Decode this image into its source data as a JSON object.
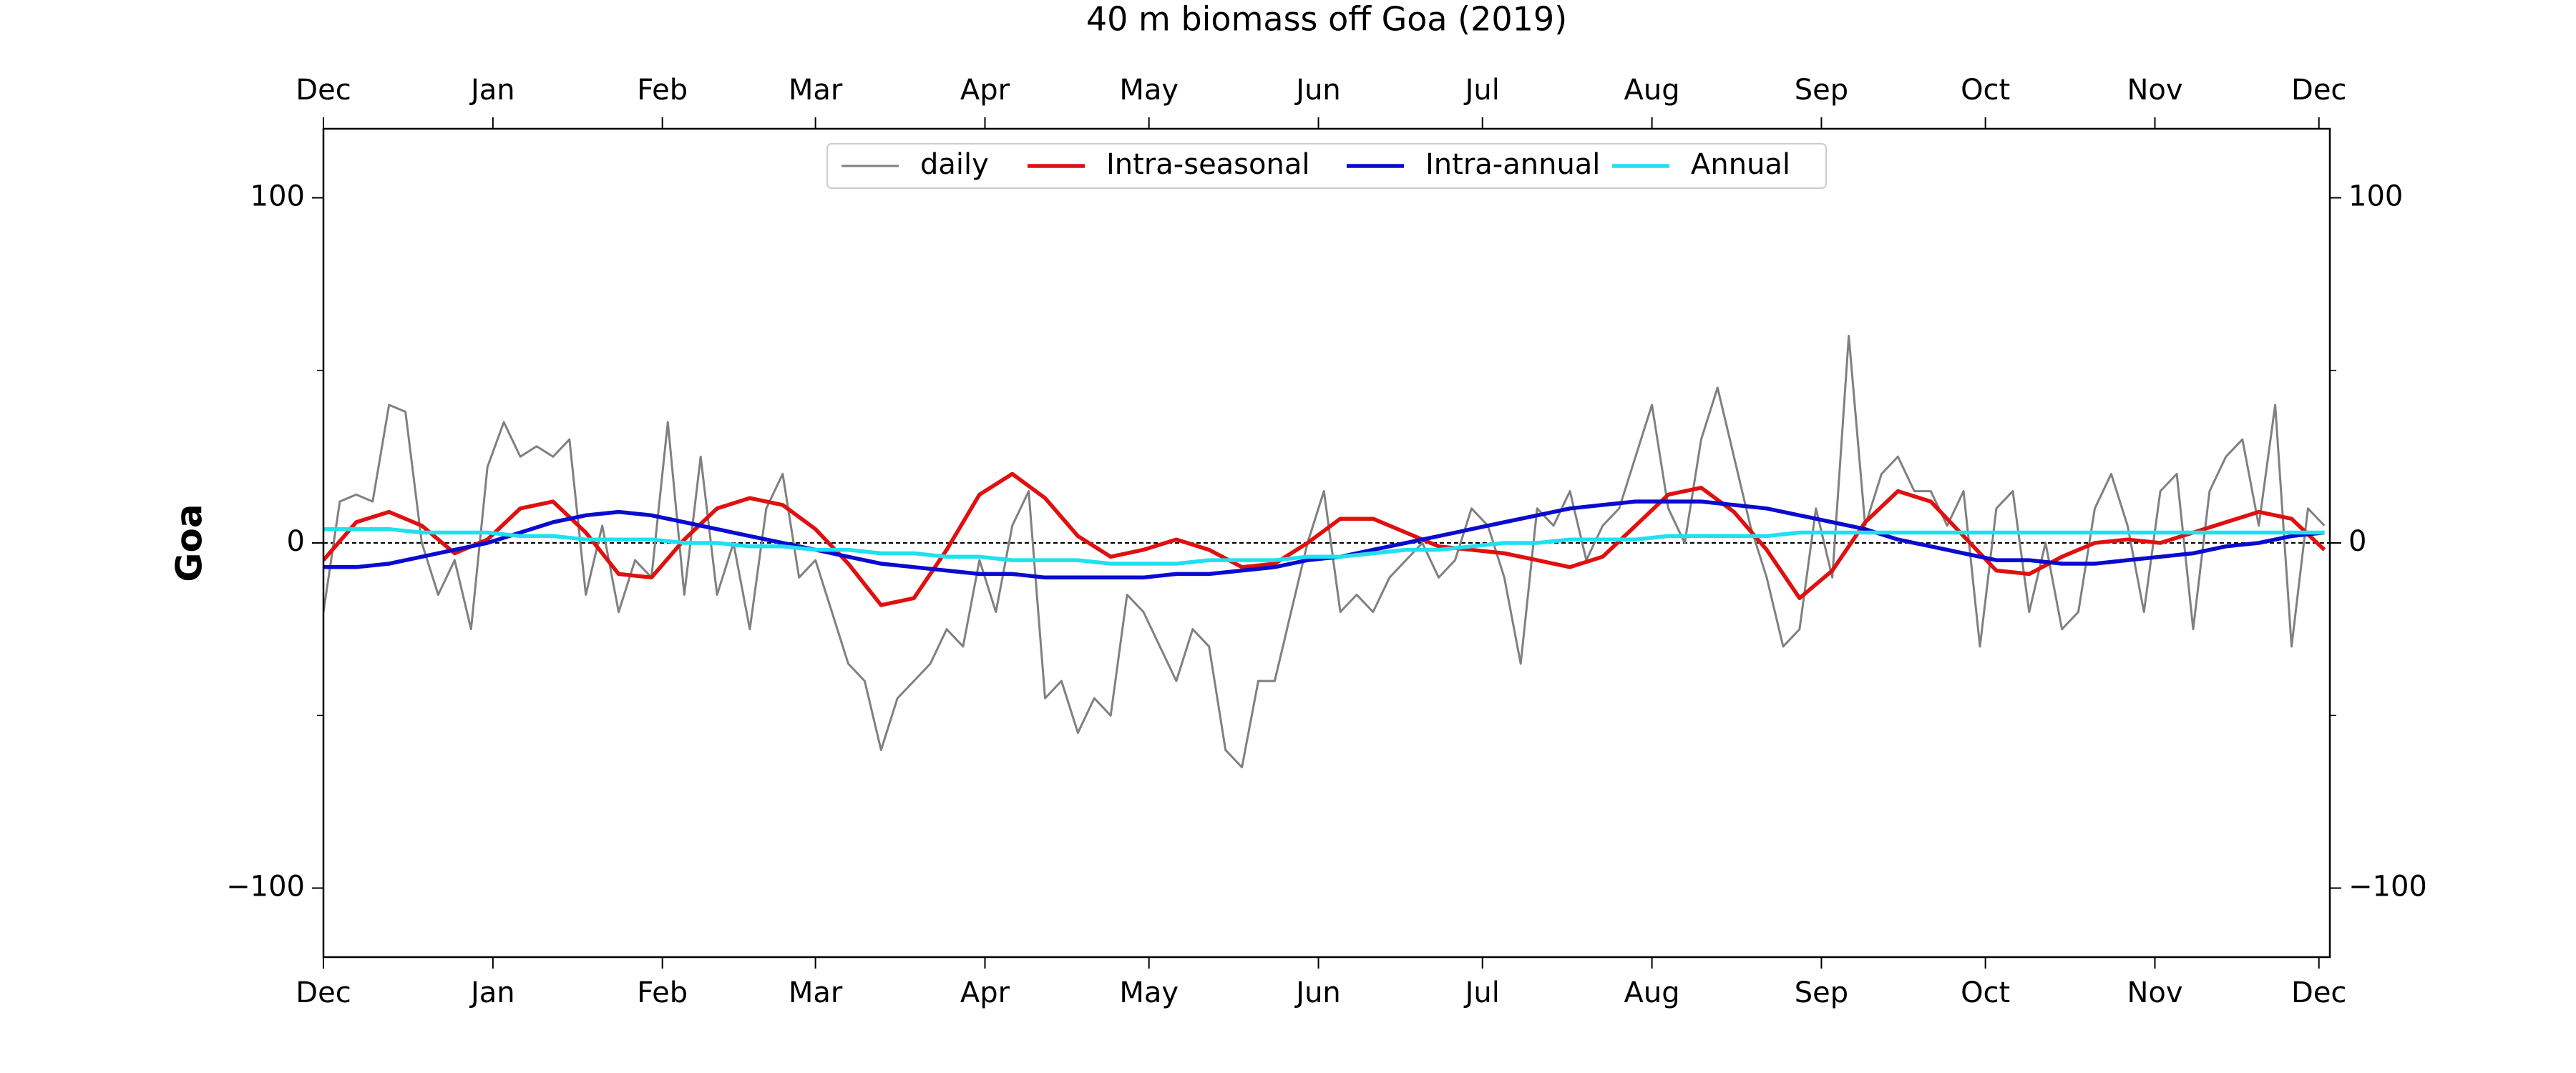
{
  "chart_data": {
    "type": "line",
    "title": "40 m biomass off Goa (2019)",
    "y_label": "Goa",
    "xlim": [
      0,
      367
    ],
    "ylim": [
      -120,
      120
    ],
    "xticks": [
      {
        "value": 0,
        "label": "Dec"
      },
      {
        "value": 31,
        "label": "Jan"
      },
      {
        "value": 62,
        "label": "Feb"
      },
      {
        "value": 90,
        "label": "Mar"
      },
      {
        "value": 121,
        "label": "Apr"
      },
      {
        "value": 151,
        "label": "May"
      },
      {
        "value": 182,
        "label": "Jun"
      },
      {
        "value": 212,
        "label": "Jul"
      },
      {
        "value": 243,
        "label": "Aug"
      },
      {
        "value": 274,
        "label": "Sep"
      },
      {
        "value": 304,
        "label": "Oct"
      },
      {
        "value": 335,
        "label": "Nov"
      },
      {
        "value": 365,
        "label": "Dec"
      }
    ],
    "yticks": [
      {
        "value": -100,
        "label": "−100"
      },
      0,
      100
    ],
    "yminorticks": [
      -50,
      50
    ],
    "hline": 0,
    "legend": "upper center",
    "series": [
      {
        "name": "daily",
        "color": "#808080",
        "x": [
          0,
          3,
          6,
          9,
          12,
          15,
          18,
          21,
          24,
          27,
          30,
          33,
          36,
          39,
          42,
          45,
          48,
          51,
          54,
          57,
          60,
          63,
          66,
          69,
          72,
          75,
          78,
          81,
          84,
          87,
          90,
          93,
          96,
          99,
          102,
          105,
          108,
          111,
          114,
          117,
          120,
          123,
          126,
          129,
          132,
          135,
          138,
          141,
          144,
          147,
          150,
          153,
          156,
          159,
          162,
          165,
          168,
          171,
          174,
          177,
          180,
          183,
          186,
          189,
          192,
          195,
          198,
          201,
          204,
          207,
          210,
          213,
          216,
          219,
          222,
          225,
          228,
          231,
          234,
          237,
          240,
          243,
          246,
          249,
          252,
          255,
          258,
          261,
          264,
          267,
          270,
          273,
          276,
          279,
          282,
          285,
          288,
          291,
          294,
          297,
          300,
          303,
          306,
          309,
          312,
          315,
          318,
          321,
          324,
          327,
          330,
          333,
          336,
          339,
          342,
          345,
          348,
          351,
          354,
          357,
          360,
          363,
          366
        ],
        "values": [
          -20,
          12,
          14,
          12,
          40,
          38,
          0,
          -15,
          -5,
          -25,
          22,
          35,
          25,
          28,
          25,
          30,
          -15,
          5,
          -20,
          -5,
          -10,
          35,
          -15,
          25,
          -15,
          0,
          -25,
          10,
          20,
          -10,
          -5,
          -20,
          -35,
          -40,
          -60,
          -45,
          -40,
          -35,
          -25,
          -30,
          -5,
          -20,
          5,
          15,
          -45,
          -40,
          -55,
          -45,
          -50,
          -15,
          -20,
          -30,
          -40,
          -25,
          -30,
          -60,
          -65,
          -40,
          -40,
          -20,
          0,
          15,
          -20,
          -15,
          -20,
          -10,
          -5,
          0,
          -10,
          -5,
          10,
          5,
          -10,
          -35,
          10,
          5,
          15,
          -5,
          5,
          10,
          25,
          40,
          10,
          0,
          30,
          45,
          25,
          5,
          -10,
          -30,
          -25,
          10,
          -10,
          60,
          5,
          20,
          25,
          15,
          15,
          5,
          15,
          -30,
          10,
          15,
          -20,
          0,
          -25,
          -20,
          10,
          20,
          5,
          -20,
          15,
          20,
          -25,
          15,
          25,
          30,
          5,
          40,
          -30,
          10,
          5
        ]
      },
      {
        "name": "Intra-seasonal",
        "color": "#e01010",
        "x": [
          0,
          6,
          12,
          18,
          24,
          30,
          36,
          42,
          48,
          54,
          60,
          66,
          72,
          78,
          84,
          90,
          96,
          102,
          108,
          114,
          120,
          126,
          132,
          138,
          144,
          150,
          156,
          162,
          168,
          174,
          180,
          186,
          192,
          198,
          204,
          210,
          216,
          222,
          228,
          234,
          240,
          246,
          252,
          258,
          264,
          270,
          276,
          282,
          288,
          294,
          300,
          306,
          312,
          318,
          324,
          330,
          336,
          342,
          348,
          354,
          360,
          366
        ],
        "values": [
          -5,
          6,
          9,
          5,
          -3,
          1,
          10,
          12,
          3,
          -9,
          -10,
          1,
          10,
          13,
          11,
          4,
          -6,
          -18,
          -16,
          -2,
          14,
          20,
          13,
          2,
          -4,
          -2,
          1,
          -2,
          -7,
          -6,
          0,
          7,
          7,
          3,
          -1,
          -2,
          -3,
          -5,
          -7,
          -4,
          5,
          14,
          16,
          9,
          -2,
          -16,
          -8,
          6,
          15,
          12,
          2,
          -8,
          -9,
          -4,
          0,
          1,
          0,
          3,
          6,
          9,
          7,
          -2
        ]
      },
      {
        "name": "Intra-annual",
        "color": "#0a0ad0",
        "x": [
          0,
          6,
          12,
          18,
          24,
          30,
          36,
          42,
          48,
          54,
          60,
          66,
          72,
          78,
          84,
          90,
          96,
          102,
          108,
          114,
          120,
          126,
          132,
          138,
          144,
          150,
          156,
          162,
          168,
          174,
          180,
          186,
          192,
          198,
          204,
          210,
          216,
          222,
          228,
          234,
          240,
          246,
          252,
          258,
          264,
          270,
          276,
          282,
          288,
          294,
          300,
          306,
          312,
          318,
          324,
          330,
          336,
          342,
          348,
          354,
          360,
          366
        ],
        "values": [
          -7,
          -7,
          -6,
          -4,
          -2,
          0,
          3,
          6,
          8,
          9,
          8,
          6,
          4,
          2,
          0,
          -2,
          -4,
          -6,
          -7,
          -8,
          -9,
          -9,
          -10,
          -10,
          -10,
          -10,
          -9,
          -9,
          -8,
          -7,
          -5,
          -4,
          -2,
          0,
          2,
          4,
          6,
          8,
          10,
          11,
          12,
          12,
          12,
          11,
          10,
          8,
          6,
          4,
          1,
          -1,
          -3,
          -5,
          -5,
          -6,
          -6,
          -5,
          -4,
          -3,
          -1,
          0,
          2,
          3
        ]
      },
      {
        "name": "Annual",
        "color": "#20e0f0",
        "x": [
          0,
          6,
          12,
          18,
          24,
          30,
          36,
          42,
          48,
          54,
          60,
          66,
          72,
          78,
          84,
          90,
          96,
          102,
          108,
          114,
          120,
          126,
          132,
          138,
          144,
          150,
          156,
          162,
          168,
          174,
          180,
          186,
          192,
          198,
          204,
          210,
          216,
          222,
          228,
          234,
          240,
          246,
          252,
          258,
          264,
          270,
          276,
          282,
          288,
          294,
          300,
          306,
          312,
          318,
          324,
          330,
          336,
          342,
          348,
          354,
          360,
          366
        ],
        "values": [
          4,
          4,
          4,
          3,
          3,
          3,
          2,
          2,
          1,
          1,
          1,
          0,
          0,
          -1,
          -1,
          -2,
          -2,
          -3,
          -3,
          -4,
          -4,
          -5,
          -5,
          -5,
          -6,
          -6,
          -6,
          -5,
          -5,
          -5,
          -4,
          -4,
          -3,
          -2,
          -2,
          -1,
          0,
          0,
          1,
          1,
          1,
          2,
          2,
          2,
          2,
          3,
          3,
          3,
          3,
          3,
          3,
          3,
          3,
          3,
          3,
          3,
          3,
          3,
          3,
          3,
          3,
          3
        ]
      }
    ]
  }
}
